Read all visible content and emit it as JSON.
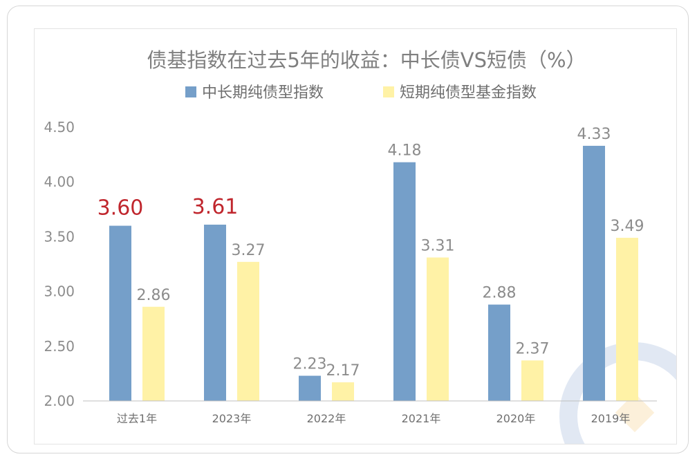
{
  "chart_data": {
    "type": "bar",
    "title": "债基指数在过去5年的收益：中长债VS短债（%）",
    "categories": [
      "过去1年",
      "2023年",
      "2022年",
      "2021年",
      "2020年",
      "2019年"
    ],
    "series": [
      {
        "name": "中长期纯债型指数",
        "color": "#759fc9",
        "values": [
          3.6,
          3.61,
          2.23,
          4.18,
          2.88,
          4.33
        ],
        "labels": [
          "3.60",
          "3.61",
          "2.23",
          "4.18",
          "2.88",
          "4.33"
        ],
        "highlight": [
          true,
          true,
          false,
          false,
          false,
          false
        ]
      },
      {
        "name": "短期纯债型基金指数",
        "color": "#fff2a6",
        "values": [
          2.86,
          3.27,
          2.17,
          3.31,
          2.37,
          3.49
        ],
        "labels": [
          "2.86",
          "3.27",
          "2.17",
          "3.31",
          "2.37",
          "3.49"
        ],
        "highlight": [
          false,
          false,
          false,
          false,
          false,
          false
        ]
      }
    ],
    "yticks": [
      "2.00",
      "2.50",
      "3.00",
      "3.50",
      "4.00",
      "4.50"
    ],
    "ylim": [
      2.0,
      4.5
    ],
    "highlight_color": "#c0262d",
    "grid": false,
    "legend_position": "top"
  }
}
